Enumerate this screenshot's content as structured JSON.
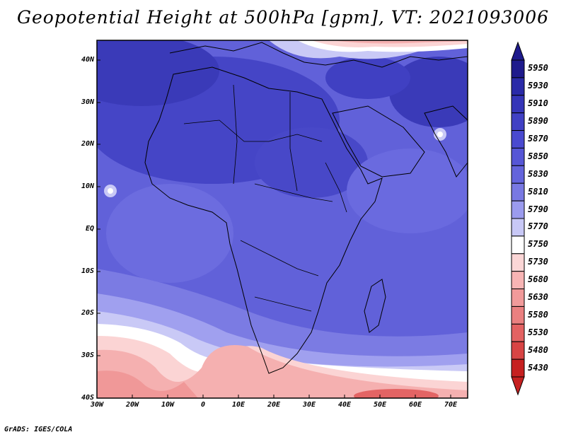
{
  "title": "Geopotential Height at 500hPa [gpm], VT: 2021093006",
  "credit": "GrADS: IGES/COLA",
  "lat_labels": [
    "40N",
    "30N",
    "20N",
    "10N",
    "EQ",
    "10S",
    "20S",
    "30S",
    "40S"
  ],
  "lon_labels": [
    "30W",
    "20W",
    "10W",
    "0",
    "10E",
    "20E",
    "30E",
    "40E",
    "50E",
    "60E",
    "70E"
  ],
  "colorbar": {
    "levels": [
      "5950",
      "5930",
      "5910",
      "5890",
      "5870",
      "5850",
      "5830",
      "5810",
      "5790",
      "5770",
      "5750",
      "5730",
      "5680",
      "5630",
      "5580",
      "5530",
      "5480",
      "5430"
    ],
    "colors": [
      "#1e1a8c",
      "#2a2aa8",
      "#3535b8",
      "#4040c4",
      "#4a4ad0",
      "#5656d6",
      "#6464dc",
      "#7878e2",
      "#9b9bee",
      "#c8c8f6",
      "#ffffff",
      "#fbd6d6",
      "#f7b4b4",
      "#f19a9a",
      "#ea8080",
      "#e36262",
      "#d84444",
      "#c62020"
    ]
  }
}
